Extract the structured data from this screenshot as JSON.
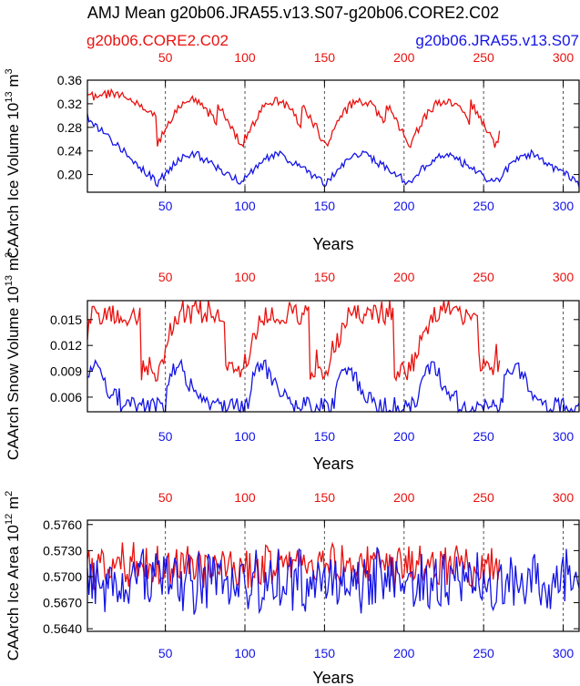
{
  "figure": {
    "title": "AMJ Mean g20b06.JRA55.v13.S07-g20b06.CORE2.C02",
    "legend_red": "g20b06.CORE2.C02",
    "legend_blue": "g20b06.JRA55.v13.S07"
  },
  "colors": {
    "red": "#e8120f",
    "blue": "#1414e6",
    "axis": "#000000",
    "grid": "#555555"
  },
  "chart_data": [
    {
      "type": "line",
      "ylabel": "CAArch Ice Volume 10",
      "ylabel_exp": "13",
      "ylabel_unit": "m",
      "ylabel_unit_exp": "3",
      "xlabel": "Years",
      "xlim": [
        1,
        310
      ],
      "ylim": [
        0.17,
        0.36
      ],
      "yticks": [
        "0.36",
        "0.32",
        "0.28",
        "0.24",
        "0.20"
      ],
      "ytick_values": [
        0.36,
        0.32,
        0.28,
        0.24,
        0.2
      ],
      "xticks": [
        "50",
        "100",
        "150",
        "200",
        "250",
        "300"
      ],
      "xtick_values": [
        50,
        100,
        150,
        200,
        250,
        300
      ],
      "series": [
        {
          "name": "g20b06.CORE2.C02",
          "color": "red",
          "n": 260,
          "shape": "icevol",
          "params": {
            "start": 0.33,
            "peak": 0.34,
            "mid": 0.3,
            "low": 0.25,
            "hi": 0.325,
            "jitter": 0.008
          }
        },
        {
          "name": "g20b06.JRA55.v13.S07",
          "color": "blue",
          "n": 310,
          "shape": "icevol_b",
          "params": {
            "start": 0.3,
            "low": 0.185,
            "hi": 0.235,
            "jitter": 0.007
          }
        }
      ]
    },
    {
      "type": "line",
      "ylabel": "CAArch Snow Volume 10",
      "ylabel_exp": "13",
      "ylabel_unit": "m",
      "ylabel_unit_exp": "3",
      "xlabel": "Years",
      "xlim": [
        1,
        310
      ],
      "ylim": [
        0.0043,
        0.0172
      ],
      "yticks": [
        "0.015",
        "0.012",
        "0.009",
        "0.006"
      ],
      "ytick_values": [
        0.015,
        0.012,
        0.009,
        0.006
      ],
      "xticks": [
        "50",
        "100",
        "150",
        "200",
        "250",
        "300"
      ],
      "xtick_values": [
        50,
        100,
        150,
        200,
        250,
        300
      ],
      "series": [
        {
          "name": "g20b06.CORE2.C02",
          "color": "red",
          "n": 260,
          "shape": "snow_r",
          "params": {
            "low": 0.009,
            "hi": 0.0155,
            "jitter": 0.0012
          }
        },
        {
          "name": "g20b06.JRA55.v13.S07",
          "color": "blue",
          "n": 310,
          "shape": "snow_b",
          "params": {
            "low": 0.005,
            "hi": 0.0095,
            "jitter": 0.001
          }
        }
      ]
    },
    {
      "type": "line",
      "ylabel": "CAArch Ice Area 10",
      "ylabel_exp": "12",
      "ylabel_unit": "m",
      "ylabel_unit_exp": "2",
      "xlabel": "Years",
      "xlim": [
        1,
        310
      ],
      "ylim": [
        0.5637,
        0.5765
      ],
      "yticks": [
        "0.5760",
        "0.5730",
        "0.5700",
        "0.5670",
        "0.5640"
      ],
      "ytick_values": [
        0.576,
        0.573,
        0.57,
        0.567,
        0.564
      ],
      "xticks": [
        "50",
        "100",
        "150",
        "200",
        "250",
        "300"
      ],
      "xtick_values": [
        50,
        100,
        150,
        200,
        250,
        300
      ],
      "series": [
        {
          "name": "g20b06.CORE2.C02",
          "color": "red",
          "n": 260,
          "shape": "area_r",
          "params": {
            "mean": 0.5712,
            "amp": 0.0022
          }
        },
        {
          "name": "g20b06.JRA55.v13.S07",
          "color": "blue",
          "n": 310,
          "shape": "area_b",
          "params": {
            "mean": 0.5695,
            "amp": 0.003
          }
        }
      ]
    }
  ]
}
